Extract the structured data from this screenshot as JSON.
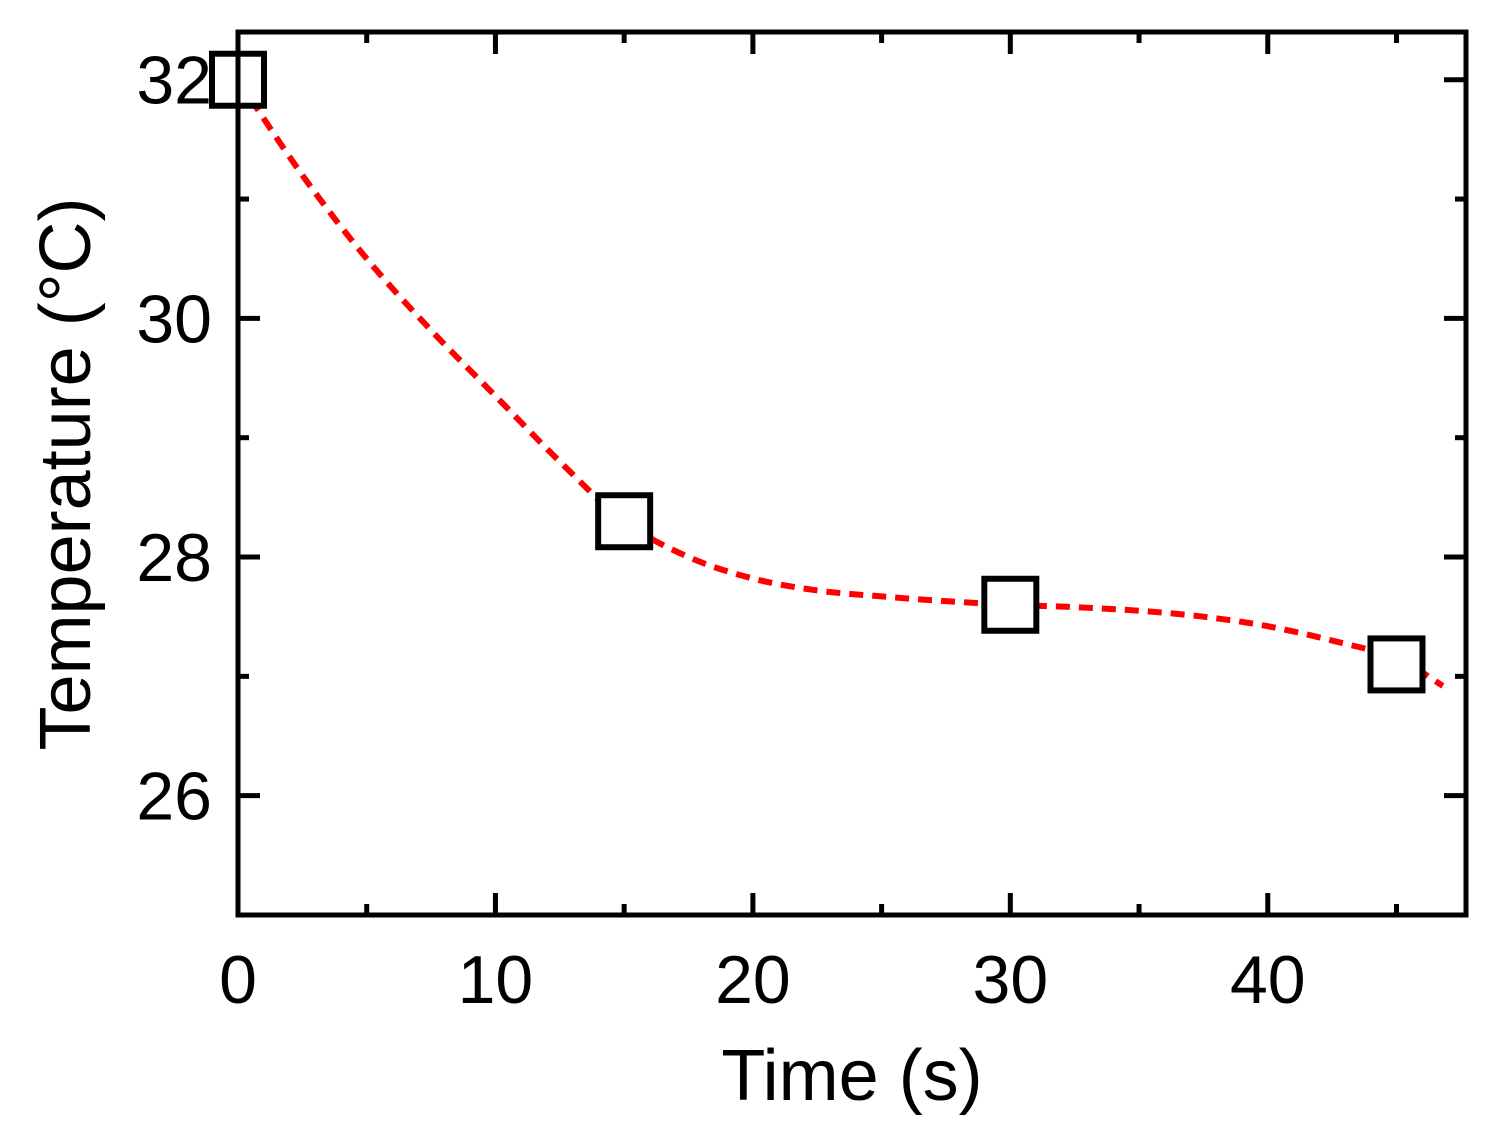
{
  "chart_data": {
    "type": "scatter",
    "title": "",
    "xlabel": "Time (s)",
    "ylabel": "Temperature (°C)",
    "xlim": [
      0,
      47.7
    ],
    "ylim": [
      25.0,
      32.4
    ],
    "xticks": [
      0,
      10,
      20,
      30,
      40
    ],
    "xticks_minor": [
      5,
      15,
      25,
      35,
      45
    ],
    "yticks": [
      26,
      28,
      30,
      32
    ],
    "yticks_minor": [
      27,
      29,
      31
    ],
    "grid": false,
    "series": [
      {
        "marker": "open-square",
        "color": "#000000",
        "points": [
          {
            "x": 0,
            "y": 32.0
          },
          {
            "x": 15,
            "y": 28.3
          },
          {
            "x": 30,
            "y": 27.6
          },
          {
            "x": 45,
            "y": 27.1
          }
        ]
      },
      {
        "style": "dashed-line",
        "color": "#ff0000",
        "points": [
          {
            "x": 0,
            "y": 32.0
          },
          {
            "x": 2.5,
            "y": 31.2
          },
          {
            "x": 5,
            "y": 30.5
          },
          {
            "x": 7.5,
            "y": 29.9
          },
          {
            "x": 10,
            "y": 29.35
          },
          {
            "x": 12.5,
            "y": 28.8
          },
          {
            "x": 15,
            "y": 28.3
          },
          {
            "x": 17.5,
            "y": 28.0
          },
          {
            "x": 20,
            "y": 27.82
          },
          {
            "x": 22.5,
            "y": 27.72
          },
          {
            "x": 25,
            "y": 27.67
          },
          {
            "x": 27.5,
            "y": 27.63
          },
          {
            "x": 30,
            "y": 27.6
          },
          {
            "x": 32.5,
            "y": 27.58
          },
          {
            "x": 35,
            "y": 27.55
          },
          {
            "x": 37.5,
            "y": 27.5
          },
          {
            "x": 40,
            "y": 27.42
          },
          {
            "x": 42.5,
            "y": 27.3
          },
          {
            "x": 45,
            "y": 27.15
          },
          {
            "x": 46.8,
            "y": 26.92
          }
        ]
      }
    ]
  }
}
